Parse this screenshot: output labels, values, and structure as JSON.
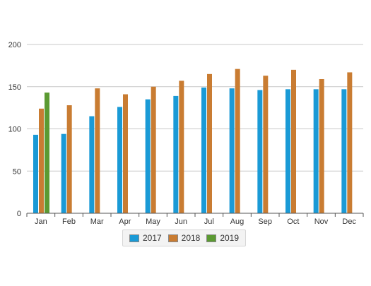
{
  "chart_data": {
    "type": "bar",
    "categories": [
      "Jan",
      "Feb",
      "Mar",
      "Apr",
      "May",
      "Jun",
      "Jul",
      "Aug",
      "Sep",
      "Oct",
      "Nov",
      "Dec"
    ],
    "series": [
      {
        "name": "2017",
        "color": "#1a9ad6",
        "values": [
          93,
          94,
          115,
          126,
          135,
          139,
          149,
          148,
          146,
          147,
          147,
          147
        ]
      },
      {
        "name": "2018",
        "color": "#c97c32",
        "values": [
          124,
          128,
          148,
          141,
          150,
          157,
          165,
          171,
          163,
          170,
          159,
          167
        ]
      },
      {
        "name": "2019",
        "color": "#5b9a32",
        "values": [
          143,
          null,
          null,
          null,
          null,
          null,
          null,
          null,
          null,
          null,
          null,
          null
        ]
      }
    ],
    "yticks": [
      "0",
      "50",
      "100",
      "150",
      "200"
    ],
    "ylim": [
      0,
      200
    ],
    "grid": true,
    "legend_position": "bottom-center",
    "title": "",
    "xlabel": "",
    "ylabel": ""
  }
}
